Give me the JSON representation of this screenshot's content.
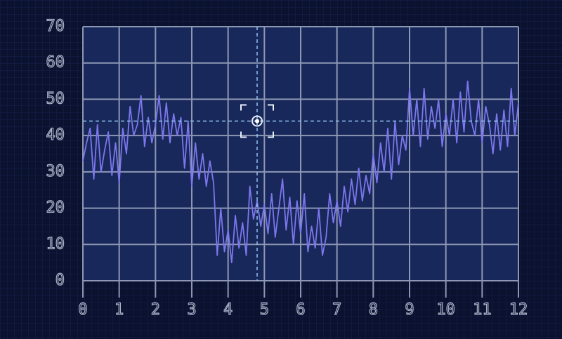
{
  "chart_data": {
    "type": "line",
    "x": [
      0,
      0.1,
      0.2,
      0.3,
      0.4,
      0.5,
      0.6,
      0.7,
      0.8,
      0.9,
      1,
      1.1,
      1.2,
      1.3,
      1.4,
      1.5,
      1.6,
      1.7,
      1.8,
      1.9,
      2,
      2.1,
      2.2,
      2.3,
      2.4,
      2.5,
      2.6,
      2.7,
      2.8,
      2.9,
      3,
      3.1,
      3.2,
      3.3,
      3.4,
      3.5,
      3.6,
      3.7,
      3.8,
      3.9,
      4,
      4.1,
      4.2,
      4.3,
      4.4,
      4.5,
      4.6,
      4.7,
      4.8,
      4.9,
      5,
      5.1,
      5.2,
      5.3,
      5.4,
      5.5,
      5.6,
      5.7,
      5.8,
      5.9,
      6,
      6.1,
      6.2,
      6.3,
      6.4,
      6.5,
      6.6,
      6.7,
      6.8,
      6.9,
      7,
      7.1,
      7.2,
      7.3,
      7.4,
      7.5,
      7.6,
      7.7,
      7.8,
      7.9,
      8,
      8.1,
      8.2,
      8.3,
      8.4,
      8.5,
      8.6,
      8.7,
      8.8,
      8.9,
      9,
      9.1,
      9.2,
      9.3,
      9.4,
      9.5,
      9.6,
      9.7,
      9.8,
      9.9,
      10,
      10.1,
      10.2,
      10.3,
      10.4,
      10.5,
      10.6,
      10.7,
      10.8,
      10.9,
      11,
      11.1,
      11.2,
      11.3,
      11.4,
      11.5,
      11.6,
      11.7,
      11.8,
      11.9,
      12
    ],
    "values": [
      33,
      38,
      42,
      28,
      43,
      30,
      36,
      41,
      29,
      38,
      27,
      42,
      35,
      48,
      40,
      43,
      51,
      37,
      45,
      38,
      43,
      51,
      39,
      49,
      38,
      46,
      40,
      45,
      31,
      44,
      26,
      38,
      28,
      35,
      26,
      33,
      27,
      7,
      20,
      8,
      14,
      5,
      18,
      9,
      16,
      7,
      26,
      17,
      22,
      15,
      21,
      13,
      24,
      12,
      20,
      28,
      14,
      23,
      10,
      22,
      13,
      24,
      8,
      15,
      9,
      20,
      7,
      12,
      24,
      16,
      22,
      15,
      26,
      19,
      28,
      21,
      31,
      22,
      29,
      24,
      35,
      27,
      38,
      30,
      42,
      28,
      44,
      32,
      40,
      36,
      53,
      40,
      50,
      37,
      53,
      39,
      48,
      42,
      50,
      37,
      46,
      40,
      50,
      38,
      52,
      41,
      55,
      44,
      40,
      50,
      38,
      48,
      43,
      35,
      46,
      36,
      47,
      37,
      53,
      40,
      49
    ],
    "color": "#7d76ec",
    "crosshair": {
      "x": 4.8,
      "y": 44
    },
    "xlim": [
      0,
      12
    ],
    "xticks": [
      0,
      1,
      2,
      3,
      4,
      5,
      6,
      7,
      8,
      9,
      10,
      11,
      12
    ],
    "ylim": [
      0,
      70
    ],
    "yticks": [
      0,
      10,
      20,
      30,
      40,
      50,
      60,
      70
    ],
    "grid": true
  }
}
